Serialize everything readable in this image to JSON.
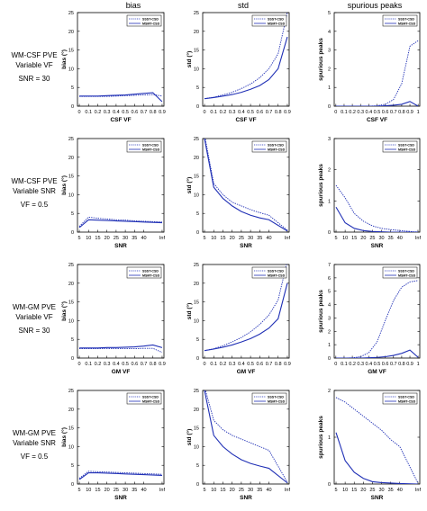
{
  "column_titles": [
    "bias",
    "std",
    "spurious peaks"
  ],
  "row_labels": [
    [
      "WM-CSF PVE",
      "Variable VF",
      "SNR = 30"
    ],
    [
      "WM-CSF PVE",
      "Variable SNR",
      "VF = 0.5"
    ],
    [
      "WM-GM PVE",
      "Variable VF",
      "SNR = 30"
    ],
    [
      "WM-GM PVE",
      "Variable SNR",
      "VF = 0.5"
    ]
  ],
  "colors": {
    "line": "#1f2fb5",
    "axis": "#000000",
    "tick": "#333333"
  },
  "chart_data": [
    {
      "type": "line",
      "row": 0,
      "col": 0,
      "title": "",
      "xlabel": "CSF VF",
      "ylabel": "bias (°)",
      "x_tick_labels": [
        "0",
        "0.1",
        "0.2",
        "0.3",
        "0.4",
        "0.5",
        "0.6",
        "0.7",
        "0.8",
        "0.9"
      ],
      "x": [
        0,
        0.1,
        0.2,
        0.3,
        0.4,
        0.5,
        0.6,
        0.7,
        0.8,
        0.9
      ],
      "xlim": [
        -0.02,
        0.92
      ],
      "ylim": [
        0,
        25
      ],
      "yticks": [
        0,
        5,
        10,
        15,
        20,
        25
      ],
      "grid": false,
      "legend": "top-right",
      "series": [
        {
          "name": "SSST-CSD",
          "style": "dotted",
          "values": [
            2.6,
            2.6,
            2.6,
            2.6,
            2.7,
            2.8,
            2.9,
            3.0,
            3.1,
            2.7
          ]
        },
        {
          "name": "MSMT-CSD",
          "style": "solid",
          "values": [
            2.7,
            2.7,
            2.7,
            2.8,
            2.9,
            3.0,
            3.2,
            3.4,
            3.6,
            1.2
          ]
        }
      ]
    },
    {
      "type": "line",
      "row": 0,
      "col": 1,
      "title": "",
      "xlabel": "CSF VF",
      "ylabel": "std (°)",
      "x_tick_labels": [
        "0",
        "0.1",
        "0.2",
        "0.3",
        "0.4",
        "0.5",
        "0.6",
        "0.7",
        "0.8",
        "0.9"
      ],
      "x": [
        0,
        0.1,
        0.2,
        0.3,
        0.4,
        0.5,
        0.6,
        0.7,
        0.8,
        0.9
      ],
      "xlim": [
        -0.02,
        0.92
      ],
      "ylim": [
        0,
        25
      ],
      "yticks": [
        0,
        5,
        10,
        15,
        20,
        25
      ],
      "grid": false,
      "legend": "top-right",
      "series": [
        {
          "name": "SSST-CSD",
          "style": "dotted",
          "values": [
            2.0,
            2.4,
            3.0,
            3.7,
            4.7,
            5.9,
            7.6,
            10.0,
            14.0,
            25.0
          ]
        },
        {
          "name": "MSMT-CSD",
          "style": "solid",
          "values": [
            2.0,
            2.3,
            2.7,
            3.1,
            3.7,
            4.5,
            5.5,
            7.1,
            10.0,
            18.5
          ]
        }
      ]
    },
    {
      "type": "line",
      "row": 0,
      "col": 2,
      "title": "",
      "xlabel": "CSF VF",
      "ylabel": "spurious peaks",
      "x_tick_labels": [
        "0",
        "0.1",
        "0.2",
        "0.3",
        "0.4",
        "0.5",
        "0.6",
        "0.7",
        "0.8",
        "0.9",
        "1"
      ],
      "x": [
        0,
        0.1,
        0.2,
        0.3,
        0.4,
        0.5,
        0.6,
        0.7,
        0.8,
        0.9,
        1.0
      ],
      "xlim": [
        -0.02,
        1.02
      ],
      "ylim": [
        0,
        5
      ],
      "yticks": [
        0,
        1,
        2,
        3,
        4,
        5
      ],
      "grid": false,
      "legend": "top-right",
      "series": [
        {
          "name": "SSST-CSD",
          "style": "dotted",
          "values": [
            0,
            0,
            0,
            0,
            0,
            0.02,
            0.1,
            0.35,
            1.2,
            3.2,
            3.5
          ]
        },
        {
          "name": "MSMT-CSD",
          "style": "solid",
          "values": [
            0,
            0,
            0,
            0,
            0,
            0,
            0.02,
            0.05,
            0.1,
            0.25,
            0
          ]
        }
      ]
    },
    {
      "type": "line",
      "row": 1,
      "col": 0,
      "title": "",
      "xlabel": "SNR",
      "ylabel": "bias (°)",
      "x_tick_labels": [
        "5",
        "10",
        "15",
        "20",
        "25",
        "30",
        "35",
        "40",
        "Inf"
      ],
      "x": [
        5,
        10,
        15,
        20,
        25,
        30,
        35,
        40,
        50
      ],
      "xlim": [
        4,
        51
      ],
      "ylim": [
        0,
        25
      ],
      "yticks": [
        0,
        5,
        10,
        15,
        20,
        25
      ],
      "grid": false,
      "legend": "top-right",
      "series": [
        {
          "name": "SSST-CSD",
          "style": "dotted",
          "values": [
            1.5,
            4.0,
            3.7,
            3.5,
            3.3,
            3.2,
            3.0,
            2.9,
            2.7
          ]
        },
        {
          "name": "MSMT-CSD",
          "style": "solid",
          "values": [
            1.2,
            3.3,
            3.2,
            3.1,
            3.0,
            2.9,
            2.8,
            2.7,
            2.5
          ]
        }
      ]
    },
    {
      "type": "line",
      "row": 1,
      "col": 1,
      "title": "",
      "xlabel": "SNR",
      "ylabel": "std (°)",
      "x_tick_labels": [
        "5",
        "10",
        "15",
        "20",
        "25",
        "30",
        "35",
        "40",
        "Inf"
      ],
      "x": [
        5,
        10,
        15,
        20,
        25,
        30,
        35,
        40,
        50
      ],
      "xlim": [
        4,
        51
      ],
      "ylim": [
        0,
        25
      ],
      "yticks": [
        0,
        5,
        10,
        15,
        20,
        25
      ],
      "grid": false,
      "legend": "top-right",
      "series": [
        {
          "name": "SSST-CSD",
          "style": "dotted",
          "values": [
            26,
            13,
            10,
            8,
            7,
            6,
            5.2,
            4.5,
            0.5
          ]
        },
        {
          "name": "MSMT-CSD",
          "style": "solid",
          "values": [
            25,
            12,
            9,
            7,
            5.5,
            4.5,
            3.8,
            3.3,
            0.3
          ]
        }
      ]
    },
    {
      "type": "line",
      "row": 1,
      "col": 2,
      "title": "",
      "xlabel": "SNR",
      "ylabel": "spurious peaks",
      "x_tick_labels": [
        "5",
        "10",
        "15",
        "20",
        "25",
        "30",
        "35",
        "40",
        "Inf"
      ],
      "x": [
        5,
        10,
        15,
        20,
        25,
        30,
        35,
        40,
        50
      ],
      "xlim": [
        4,
        51
      ],
      "ylim": [
        0,
        3
      ],
      "yticks": [
        0,
        1,
        2,
        3
      ],
      "grid": false,
      "legend": "top-right",
      "series": [
        {
          "name": "SSST-CSD",
          "style": "dotted",
          "values": [
            1.5,
            1.1,
            0.6,
            0.35,
            0.2,
            0.12,
            0.08,
            0.05,
            0
          ]
        },
        {
          "name": "MSMT-CSD",
          "style": "solid",
          "values": [
            0.8,
            0.3,
            0.12,
            0.05,
            0.02,
            0.01,
            0,
            0,
            0
          ]
        }
      ]
    },
    {
      "type": "line",
      "row": 2,
      "col": 0,
      "title": "",
      "xlabel": "GM VF",
      "ylabel": "bias (°)",
      "x_tick_labels": [
        "0",
        "0.1",
        "0.2",
        "0.3",
        "0.4",
        "0.5",
        "0.6",
        "0.7",
        "0.8",
        "0.9"
      ],
      "x": [
        0,
        0.1,
        0.2,
        0.3,
        0.4,
        0.5,
        0.6,
        0.7,
        0.8,
        0.9
      ],
      "xlim": [
        -0.02,
        0.92
      ],
      "ylim": [
        0,
        25
      ],
      "yticks": [
        0,
        5,
        10,
        15,
        20,
        25
      ],
      "grid": false,
      "legend": "top-right",
      "series": [
        {
          "name": "SSST-CSD",
          "style": "dotted",
          "values": [
            2.5,
            2.5,
            2.5,
            2.5,
            2.5,
            2.5,
            2.5,
            2.6,
            2.6,
            1.5
          ]
        },
        {
          "name": "MSMT-CSD",
          "style": "solid",
          "values": [
            2.7,
            2.7,
            2.7,
            2.8,
            2.8,
            2.9,
            3.0,
            3.2,
            3.5,
            2.8
          ]
        }
      ]
    },
    {
      "type": "line",
      "row": 2,
      "col": 1,
      "title": "",
      "xlabel": "GM VF",
      "ylabel": "std (°)",
      "x_tick_labels": [
        "0",
        "0.1",
        "0.2",
        "0.3",
        "0.4",
        "0.5",
        "0.6",
        "0.7",
        "0.8",
        "0.9"
      ],
      "x": [
        0,
        0.1,
        0.2,
        0.3,
        0.4,
        0.5,
        0.6,
        0.7,
        0.8,
        0.9
      ],
      "xlim": [
        -0.02,
        0.92
      ],
      "ylim": [
        0,
        25
      ],
      "yticks": [
        0,
        5,
        10,
        15,
        20,
        25
      ],
      "grid": false,
      "legend": "top-right",
      "series": [
        {
          "name": "SSST-CSD",
          "style": "dotted",
          "values": [
            2.0,
            2.5,
            3.3,
            4.3,
            5.5,
            7.0,
            9.0,
            11.5,
            15.5,
            26.0
          ]
        },
        {
          "name": "MSMT-CSD",
          "style": "solid",
          "values": [
            2.0,
            2.4,
            2.9,
            3.5,
            4.3,
            5.2,
            6.4,
            8.0,
            10.5,
            20.0
          ]
        }
      ]
    },
    {
      "type": "line",
      "row": 2,
      "col": 2,
      "title": "",
      "xlabel": "GM VF",
      "ylabel": "spurious peaks",
      "x_tick_labels": [
        "0",
        "0.1",
        "0.2",
        "0.3",
        "0.4",
        "0.5",
        "0.6",
        "0.7",
        "0.8",
        "0.9",
        "1"
      ],
      "x": [
        0,
        0.1,
        0.2,
        0.3,
        0.4,
        0.5,
        0.6,
        0.7,
        0.8,
        0.9,
        1.0
      ],
      "xlim": [
        -0.02,
        1.02
      ],
      "ylim": [
        0,
        7
      ],
      "yticks": [
        0,
        1,
        2,
        3,
        4,
        5,
        6,
        7
      ],
      "grid": false,
      "legend": "top-right",
      "series": [
        {
          "name": "SSST-CSD",
          "style": "dotted",
          "values": [
            0,
            0,
            0.02,
            0.1,
            0.4,
            1.2,
            2.8,
            4.3,
            5.3,
            5.7,
            5.8
          ]
        },
        {
          "name": "MSMT-CSD",
          "style": "solid",
          "values": [
            0,
            0,
            0,
            0,
            0.02,
            0.05,
            0.1,
            0.2,
            0.35,
            0.6,
            0.05
          ]
        }
      ]
    },
    {
      "type": "line",
      "row": 3,
      "col": 0,
      "title": "",
      "xlabel": "SNR",
      "ylabel": "bias (°)",
      "x_tick_labels": [
        "5",
        "10",
        "15",
        "20",
        "25",
        "30",
        "35",
        "40",
        "Inf"
      ],
      "x": [
        5,
        10,
        15,
        20,
        25,
        30,
        35,
        40,
        50
      ],
      "xlim": [
        4,
        51
      ],
      "ylim": [
        0,
        25
      ],
      "yticks": [
        0,
        5,
        10,
        15,
        20,
        25
      ],
      "grid": false,
      "legend": "top-right",
      "series": [
        {
          "name": "SSST-CSD",
          "style": "dotted",
          "values": [
            1.5,
            3.4,
            3.3,
            3.2,
            3.1,
            3.0,
            2.9,
            2.8,
            2.6
          ]
        },
        {
          "name": "MSMT-CSD",
          "style": "solid",
          "values": [
            1.2,
            3.0,
            3.0,
            2.9,
            2.8,
            2.7,
            2.6,
            2.5,
            2.3
          ]
        }
      ]
    },
    {
      "type": "line",
      "row": 3,
      "col": 1,
      "title": "",
      "xlabel": "SNR",
      "ylabel": "std (°)",
      "x_tick_labels": [
        "5",
        "10",
        "15",
        "20",
        "25",
        "30",
        "35",
        "40",
        "Inf"
      ],
      "x": [
        5,
        10,
        15,
        20,
        25,
        30,
        35,
        40,
        50
      ],
      "xlim": [
        4,
        51
      ],
      "ylim": [
        0,
        25
      ],
      "yticks": [
        0,
        5,
        10,
        15,
        20,
        25
      ],
      "grid": false,
      "legend": "top-right",
      "series": [
        {
          "name": "SSST-CSD",
          "style": "dotted",
          "values": [
            26,
            17,
            14.5,
            13,
            12,
            11,
            10,
            9,
            0.5
          ]
        },
        {
          "name": "MSMT-CSD",
          "style": "solid",
          "values": [
            25,
            13,
            10,
            8,
            6.5,
            5.5,
            4.8,
            4.2,
            0.3
          ]
        }
      ]
    },
    {
      "type": "line",
      "row": 3,
      "col": 2,
      "title": "",
      "xlabel": "SNR",
      "ylabel": "spurious peaks",
      "x_tick_labels": [
        "5",
        "10",
        "15",
        "20",
        "25",
        "30",
        "35",
        "40",
        "Inf"
      ],
      "x": [
        5,
        10,
        15,
        20,
        25,
        30,
        35,
        40,
        50
      ],
      "xlim": [
        4,
        51
      ],
      "ylim": [
        0,
        2
      ],
      "yticks": [
        0,
        1,
        2
      ],
      "grid": false,
      "legend": "top-right",
      "series": [
        {
          "name": "SSST-CSD",
          "style": "dotted",
          "values": [
            1.85,
            1.75,
            1.6,
            1.45,
            1.3,
            1.15,
            0.95,
            0.8,
            0.02
          ]
        },
        {
          "name": "MSMT-CSD",
          "style": "solid",
          "values": [
            1.1,
            0.5,
            0.25,
            0.12,
            0.05,
            0.03,
            0.02,
            0.01,
            0
          ]
        }
      ]
    }
  ]
}
